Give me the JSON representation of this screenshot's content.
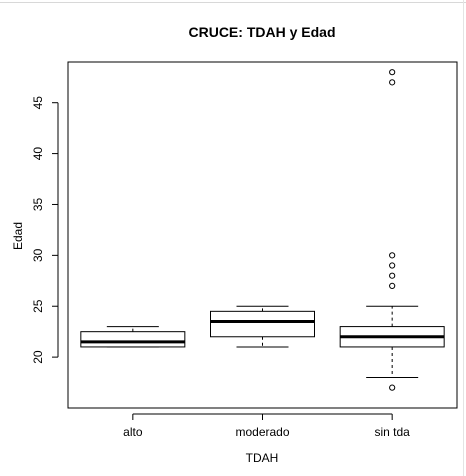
{
  "chart_data": {
    "type": "boxplot",
    "title": "CRUCE: TDAH y Edad",
    "xlabel": "TDAH",
    "ylabel": "Edad",
    "ylim": [
      15,
      49
    ],
    "yticks": [
      20,
      25,
      30,
      35,
      40,
      45
    ],
    "categories": [
      "alto",
      "moderado",
      "sin tda"
    ],
    "boxes": [
      {
        "category": "alto",
        "whisker_low": 21,
        "q1": 21,
        "median": 21.5,
        "q3": 22.5,
        "whisker_high": 23,
        "outliers": []
      },
      {
        "category": "moderado",
        "whisker_low": 21,
        "q1": 22,
        "median": 23.5,
        "q3": 24.5,
        "whisker_high": 25,
        "outliers": []
      },
      {
        "category": "sin tda",
        "whisker_low": 18,
        "q1": 21,
        "median": 22,
        "q3": 23,
        "whisker_high": 25,
        "outliers": [
          17,
          27,
          28,
          29,
          30,
          47,
          48
        ]
      }
    ],
    "grid": false,
    "legend": "none"
  }
}
